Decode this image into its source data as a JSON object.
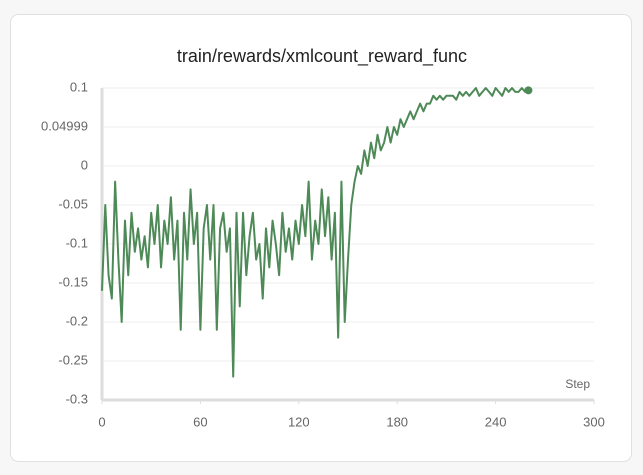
{
  "chart_data": {
    "type": "line",
    "title": "train/rewards/xmlcount_reward_func",
    "x_label": "Step",
    "color": "#4e8a57",
    "x": [
      0,
      2,
      4,
      6,
      8,
      10,
      12,
      14,
      16,
      18,
      20,
      22,
      24,
      26,
      28,
      30,
      32,
      34,
      36,
      38,
      40,
      42,
      44,
      46,
      48,
      50,
      52,
      54,
      56,
      58,
      60,
      62,
      64,
      66,
      68,
      70,
      72,
      74,
      76,
      78,
      80,
      82,
      84,
      86,
      88,
      90,
      92,
      94,
      96,
      98,
      100,
      102,
      104,
      106,
      108,
      110,
      112,
      114,
      116,
      118,
      120,
      122,
      124,
      126,
      128,
      130,
      132,
      134,
      136,
      138,
      140,
      142,
      144,
      146,
      148,
      150,
      152,
      154,
      156,
      158,
      160,
      162,
      164,
      166,
      168,
      170,
      172,
      174,
      176,
      178,
      180,
      182,
      184,
      186,
      188,
      190,
      192,
      194,
      196,
      198,
      200,
      202,
      204,
      206,
      208,
      210,
      212,
      214,
      216,
      218,
      220,
      222,
      224,
      226,
      228,
      230,
      232,
      234,
      236,
      238,
      240,
      242,
      244,
      246,
      248,
      250,
      252,
      254,
      256,
      258,
      260
    ],
    "values": [
      -0.16,
      -0.05,
      -0.14,
      -0.17,
      -0.02,
      -0.12,
      -0.2,
      -0.07,
      -0.14,
      -0.06,
      -0.11,
      -0.08,
      -0.12,
      -0.09,
      -0.13,
      -0.06,
      -0.1,
      -0.05,
      -0.13,
      -0.07,
      -0.1,
      -0.04,
      -0.12,
      -0.07,
      -0.21,
      -0.06,
      -0.12,
      -0.03,
      -0.1,
      -0.06,
      -0.21,
      -0.08,
      -0.05,
      -0.12,
      -0.05,
      -0.21,
      -0.08,
      -0.06,
      -0.11,
      -0.08,
      -0.27,
      -0.06,
      -0.18,
      -0.06,
      -0.14,
      -0.09,
      -0.06,
      -0.12,
      -0.1,
      -0.17,
      -0.08,
      -0.13,
      -0.07,
      -0.1,
      -0.14,
      -0.06,
      -0.11,
      -0.08,
      -0.12,
      -0.07,
      -0.1,
      -0.05,
      -0.09,
      -0.02,
      -0.12,
      -0.07,
      -0.1,
      -0.03,
      -0.09,
      -0.04,
      -0.12,
      -0.06,
      -0.22,
      -0.02,
      -0.2,
      -0.12,
      -0.05,
      -0.02,
      0.0,
      -0.01,
      0.02,
      0.0,
      0.03,
      0.01,
      0.04,
      0.02,
      0.03,
      0.05,
      0.03,
      0.05,
      0.04,
      0.06,
      0.05,
      0.06,
      0.07,
      0.06,
      0.07,
      0.08,
      0.07,
      0.08,
      0.08,
      0.09,
      0.085,
      0.09,
      0.085,
      0.09,
      0.09,
      0.09,
      0.085,
      0.095,
      0.09,
      0.095,
      0.09,
      0.095,
      0.1,
      0.09,
      0.095,
      0.1,
      0.095,
      0.09,
      0.1,
      0.095,
      0.09,
      0.1,
      0.095,
      0.1,
      0.095,
      0.095,
      0.1,
      0.095,
      0.097
    ],
    "xlim": [
      0,
      300
    ],
    "xticks": [
      0,
      60,
      120,
      180,
      240,
      300
    ],
    "ylim": [
      -0.3,
      0.1
    ],
    "yticks": [
      0.1,
      0.04999,
      0,
      -0.05,
      -0.1,
      -0.15,
      -0.2,
      -0.25,
      -0.3
    ],
    "grid": true
  }
}
